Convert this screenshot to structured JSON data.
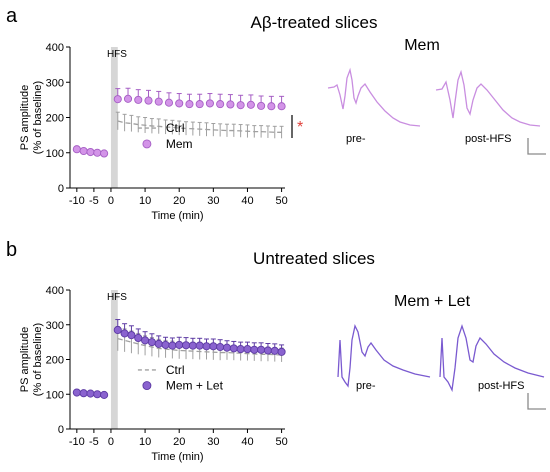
{
  "colors": {
    "ctrl": "#a0a0a0",
    "mem": "#d394e8",
    "mem_stroke": "#a55ec4",
    "mem_let": "#8a63cf",
    "mem_let_stroke": "#5c3aa3",
    "hfs_band": "#d6d6d6",
    "star": "#e0403a",
    "trace_mem": "#c98ee0",
    "trace_let": "#7a5ad0"
  },
  "panels": {
    "a": {
      "label": "a",
      "title": "Aβ-treated slices",
      "trace_title": "Mem",
      "trace_labels": [
        "pre-",
        "post-HFS"
      ],
      "star": "*"
    },
    "b": {
      "label": "b",
      "title": "Untreated slices",
      "trace_title": "Mem + Let",
      "trace_labels": [
        "pre-",
        "post-HFS"
      ]
    }
  },
  "chart_data": [
    {
      "type": "scatter",
      "panel": "a",
      "ylabel": "PS amplitude\n(% of baseline)",
      "xlabel": "Time (min)",
      "xlim": [
        -12,
        51
      ],
      "ylim": [
        0,
        400
      ],
      "xticks": [
        -10,
        -5,
        0,
        10,
        20,
        30,
        40,
        50
      ],
      "yticks": [
        0,
        100,
        200,
        300,
        400
      ],
      "hfs_label": "HFS",
      "hfs_band": [
        0,
        2
      ],
      "legend": {
        "position": "center-bottom",
        "entries": [
          "Ctrl",
          "Mem"
        ]
      },
      "series": [
        {
          "name": "Ctrl",
          "style": "dashed",
          "x": [
            2,
            4,
            6,
            8,
            10,
            12,
            14,
            16,
            18,
            20,
            22,
            24,
            26,
            28,
            30,
            32,
            34,
            36,
            38,
            40,
            42,
            44,
            46,
            48,
            50
          ],
          "y": [
            190,
            185,
            183,
            180,
            178,
            176,
            175,
            173,
            172,
            170,
            169,
            168,
            167,
            166,
            165,
            164,
            163,
            163,
            162,
            161,
            160,
            160,
            159,
            158,
            158
          ],
          "err": [
            25,
            24,
            23,
            22,
            22,
            21,
            21,
            20,
            20,
            20,
            19,
            19,
            19,
            19,
            18,
            18,
            18,
            18,
            18,
            18,
            17,
            17,
            17,
            17,
            17
          ]
        },
        {
          "name": "Mem",
          "style": "markers",
          "x": [
            -10,
            -8,
            -6,
            -4,
            -2,
            2,
            5,
            8,
            11,
            14,
            17,
            20,
            23,
            26,
            29,
            32,
            35,
            38,
            41,
            44,
            47,
            50
          ],
          "y": [
            110,
            105,
            102,
            100,
            98,
            252,
            253,
            250,
            248,
            245,
            242,
            240,
            238,
            238,
            240,
            238,
            237,
            235,
            236,
            233,
            232,
            232
          ],
          "err": [
            5,
            5,
            4,
            4,
            4,
            30,
            30,
            29,
            29,
            29,
            28,
            28,
            28,
            28,
            28,
            28,
            28,
            28,
            28,
            28,
            28,
            28
          ]
        }
      ]
    },
    {
      "type": "scatter",
      "panel": "b",
      "ylabel": "PS amplitude\n(% of baseline)",
      "xlabel": "Time (min)",
      "xlim": [
        -12,
        51
      ],
      "ylim": [
        0,
        400
      ],
      "xticks": [
        -10,
        -5,
        0,
        10,
        20,
        30,
        40,
        50
      ],
      "yticks": [
        0,
        100,
        200,
        300,
        400
      ],
      "hfs_label": "HFS",
      "hfs_band": [
        0,
        2
      ],
      "legend": {
        "position": "center-bottom",
        "entries": [
          "Ctrl",
          "Mem + Let"
        ]
      },
      "series": [
        {
          "name": "Ctrl",
          "style": "dashed",
          "x": [
            2,
            4,
            6,
            8,
            10,
            12,
            14,
            16,
            18,
            20,
            22,
            24,
            26,
            28,
            30,
            32,
            34,
            36,
            38,
            40,
            42,
            44,
            46,
            48,
            50
          ],
          "y": [
            260,
            255,
            250,
            245,
            240,
            236,
            232,
            230,
            228,
            226,
            225,
            224,
            223,
            222,
            221,
            220,
            220,
            219,
            218,
            217,
            216,
            215,
            215,
            214,
            213
          ],
          "err": [
            35,
            33,
            32,
            30,
            28,
            27,
            26,
            25,
            25,
            24,
            24,
            23,
            23,
            22,
            22,
            22,
            21,
            21,
            21,
            20,
            20,
            20,
            20,
            20,
            20
          ]
        },
        {
          "name": "Mem + Let",
          "style": "markers",
          "x": [
            -10,
            -8,
            -6,
            -4,
            -2,
            2,
            4,
            6,
            8,
            10,
            12,
            14,
            16,
            18,
            20,
            22,
            24,
            26,
            28,
            30,
            32,
            34,
            36,
            38,
            40,
            42,
            44,
            46,
            48,
            50
          ],
          "y": [
            105,
            103,
            102,
            100,
            98,
            285,
            275,
            270,
            262,
            255,
            250,
            245,
            242,
            240,
            242,
            241,
            240,
            240,
            238,
            238,
            236,
            234,
            232,
            230,
            230,
            228,
            228,
            226,
            225,
            222
          ],
          "err": [
            4,
            4,
            4,
            4,
            4,
            30,
            28,
            27,
            26,
            25,
            24,
            23,
            22,
            22,
            22,
            22,
            21,
            21,
            21,
            21,
            21,
            20,
            20,
            20,
            20,
            20,
            20,
            20,
            20,
            20
          ]
        }
      ]
    }
  ]
}
